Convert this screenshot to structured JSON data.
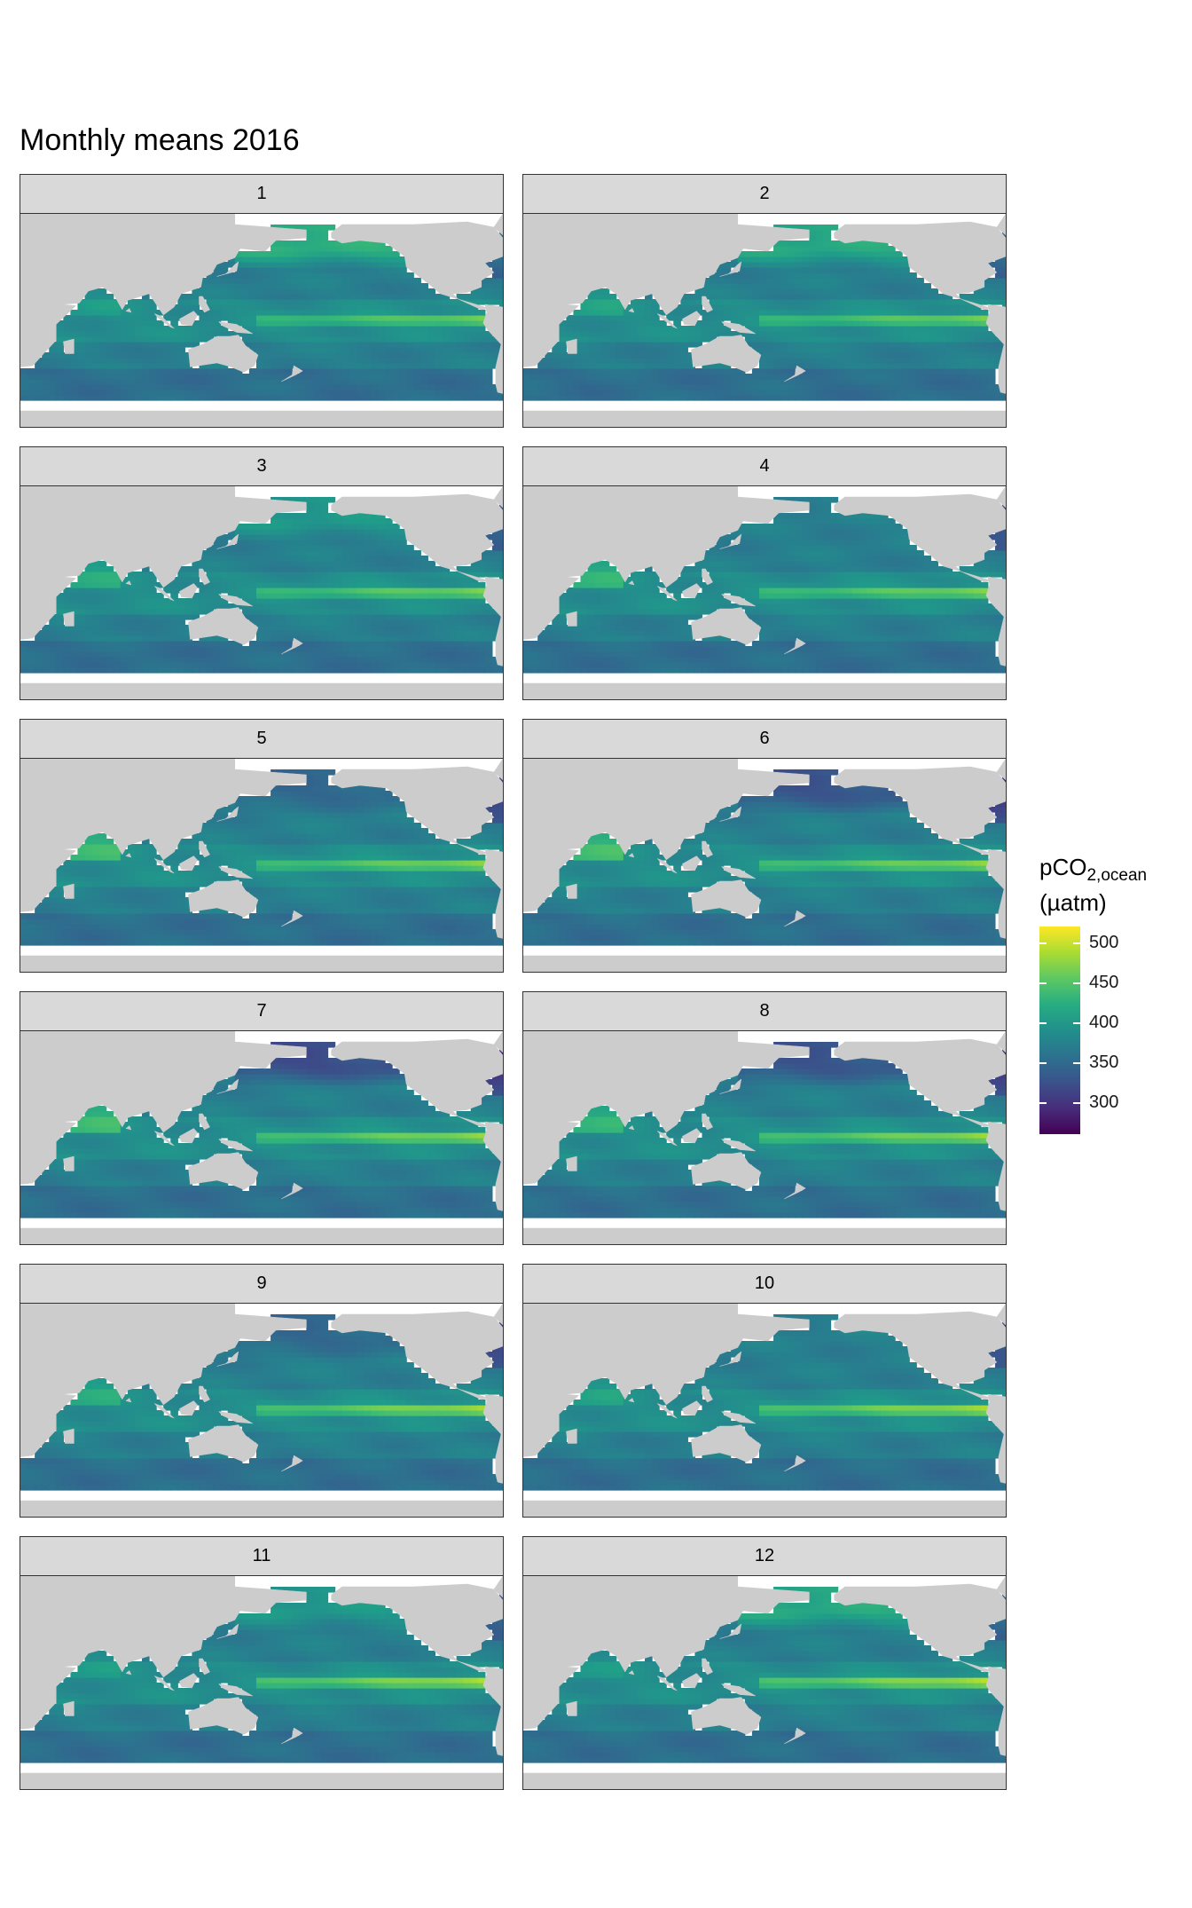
{
  "title": "Monthly means 2016",
  "panels": [
    {
      "label": "1",
      "month": 1
    },
    {
      "label": "2",
      "month": 2
    },
    {
      "label": "3",
      "month": 3
    },
    {
      "label": "4",
      "month": 4
    },
    {
      "label": "5",
      "month": 5
    },
    {
      "label": "6",
      "month": 6
    },
    {
      "label": "7",
      "month": 7
    },
    {
      "label": "8",
      "month": 8
    },
    {
      "label": "9",
      "month": 9
    },
    {
      "label": "10",
      "month": 10
    },
    {
      "label": "11",
      "month": 11
    },
    {
      "label": "12",
      "month": 12
    }
  ],
  "legend": {
    "title_main": "pCO",
    "title_sub": "2,ocean",
    "title_unit": "(µatm)",
    "min": 260,
    "max": 520,
    "ticks": [
      300,
      350,
      400,
      450,
      500
    ],
    "colors": [
      "#440154",
      "#3b528b",
      "#21908c",
      "#5dc863",
      "#fde725"
    ]
  },
  "colors": {
    "land": "#cccccc",
    "ocean_nodata": "#ffffff",
    "strip_bg": "#d9d9d9",
    "panel_border": "#333333"
  },
  "map_extent": {
    "lon": [
      20,
      290
    ],
    "lat": [
      -80,
      80
    ]
  }
}
